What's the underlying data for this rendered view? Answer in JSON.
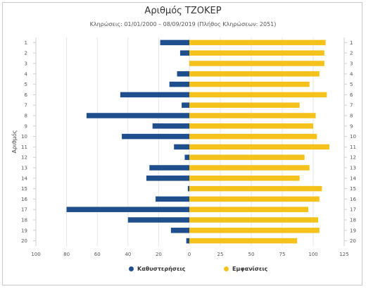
{
  "chart_data": {
    "type": "bar",
    "orientation": "horizontal-diverging",
    "title": "Αριθμός ΤΖΟΚΕΡ",
    "subtitle": "Κληρώσεις: 01/01/2000 – 08/09/2019 (Πλήθος Κληρώσεων: 2051)",
    "ylabel": "Αριθμός",
    "xlabel": "",
    "categories": [
      "1",
      "2",
      "3",
      "4",
      "5",
      "6",
      "7",
      "8",
      "9",
      "10",
      "11",
      "12",
      "13",
      "14",
      "15",
      "16",
      "17",
      "18",
      "19",
      "20"
    ],
    "x_ticks": [
      "100",
      "80",
      "60",
      "40",
      "20",
      "0",
      "25",
      "50",
      "75",
      "100",
      "125"
    ],
    "series": [
      {
        "name": "Καθυστερήσεις",
        "color": "#1f4e8c",
        "side": "left",
        "xlim": [
          0,
          100
        ],
        "values": [
          19,
          6,
          0,
          8,
          13,
          45,
          5,
          67,
          24,
          44,
          10,
          3,
          26,
          28,
          1,
          22,
          80,
          40,
          12,
          2
        ]
      },
      {
        "name": "Εμφανίσεις",
        "color": "#f5c21b",
        "side": "right",
        "xlim": [
          0,
          125
        ],
        "values": [
          110,
          109,
          109,
          105,
          97,
          111,
          89,
          102,
          100,
          103,
          113,
          93,
          97,
          89,
          107,
          105,
          96,
          104,
          105,
          87
        ]
      }
    ],
    "grid": true,
    "legend_position": "bottom-center"
  }
}
